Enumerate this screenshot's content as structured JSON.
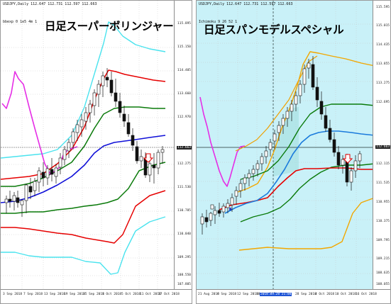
{
  "left": {
    "symbol": "USDJPY,Daily",
    "ohlc": "112.647 112.731 112.597 112.663",
    "indicator": "bbexp 0 1e5 4m 1",
    "title": "日足スーパーボリンジャー",
    "price_labels": [
      "115.895",
      "115.150",
      "114.405",
      "113.660",
      "112.970",
      "112.275",
      "111.530",
      "110.785",
      "110.040",
      "109.295",
      "108.550",
      "107.805"
    ],
    "current_price": "112.663",
    "dates": [
      "3 Sep 2018",
      "7 Sep 2018",
      "13 Sep 2018",
      "19 Sep 2018",
      "25 Sep 2018",
      "1 Oct 2018",
      "5 Oct 2018",
      "11 Oct 2018",
      "17 Oct 2018"
    ]
  },
  "right": {
    "symbol": "USDJPY,Daily",
    "ohlc": "112.647 112.731 112.597 112.663",
    "indicator": "Ichimoku 9 26 52 1",
    "title": "日足スパンモデルスペシャル",
    "price_labels": [
      "115.595",
      "115.015",
      "114.435",
      "113.855",
      "113.275",
      "112.695",
      "112.115",
      "111.535",
      "110.955",
      "110.375",
      "109.795",
      "109.215",
      "108.635",
      "108.055"
    ],
    "current_price": "112.663",
    "dates": [
      "21 Aug 2018",
      "6 Sep 2018",
      "12 Sep 2018",
      "18 Sep 2018",
      "2018.09.28 21:00",
      "28 Sep 2018",
      "4 Oct 2018",
      "10 Oct 2018",
      "16 Oct 2018"
    ]
  },
  "colors": {
    "background": "#ffffff",
    "cloud": "#c9f1f8",
    "cyan_band": "#4ae3ee",
    "red_band": "#e60000",
    "green_band": "#0a7a0a",
    "blue_mid": "#1010d8",
    "magenta_lag": "#e62ee6",
    "orange_band": "#f2a700"
  }
}
